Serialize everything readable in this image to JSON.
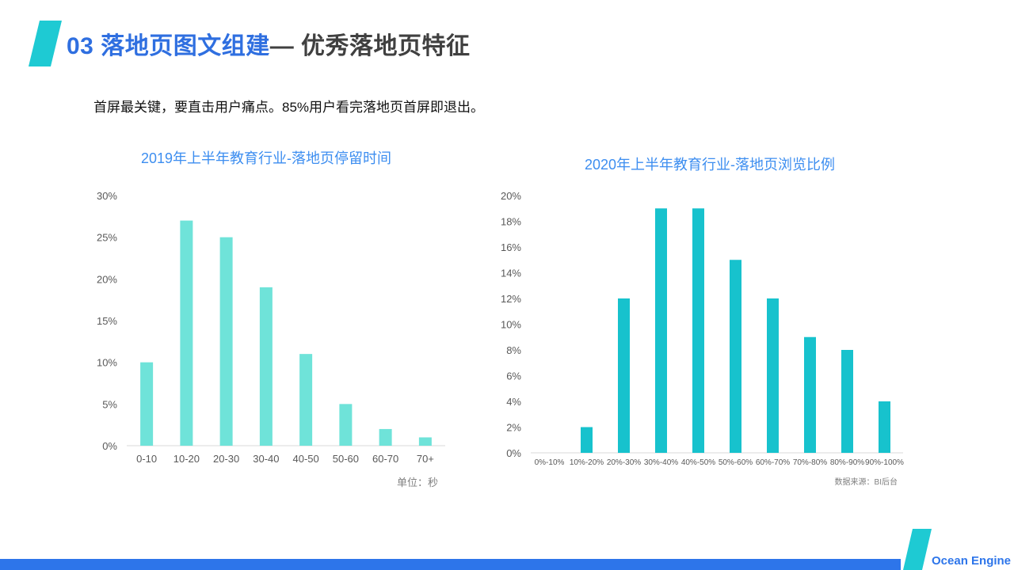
{
  "header": {
    "title_blue": "03 落地页图文组建",
    "title_gray": "— 优秀落地页特征"
  },
  "subtitle": "首屏最关键，要直击用户痛点。85%用户看完落地页首屏即退出。",
  "colors": {
    "accent": "#2f6fe0",
    "bar1": "#6fe3d9",
    "bar2": "#17c2cd",
    "footer": "#2d75ea",
    "logo": "#1ecad3"
  },
  "chart_data": [
    {
      "type": "bar",
      "title": "2019年上半年教育行业-落地页停留时间",
      "categories": [
        "0-10",
        "10-20",
        "20-30",
        "30-40",
        "40-50",
        "50-60",
        "60-70",
        "70+"
      ],
      "values": [
        10,
        27,
        25,
        19,
        11,
        5,
        2,
        1
      ],
      "ylim": [
        0,
        30
      ],
      "yticks": [
        "0%",
        "5%",
        "10%",
        "15%",
        "20%",
        "25%",
        "30%"
      ],
      "note": "单位：秒",
      "grid": false
    },
    {
      "type": "bar",
      "title": "2020年上半年教育行业-落地页浏览比例",
      "categories": [
        "0%-10%",
        "10%-20%",
        "20%-30%",
        "30%-40%",
        "40%-50%",
        "50%-60%",
        "60%-70%",
        "70%-80%",
        "80%-90%",
        "90%-100%"
      ],
      "values": [
        0,
        2,
        12,
        19,
        19,
        15,
        12,
        9,
        8,
        4
      ],
      "ylim": [
        0,
        20
      ],
      "yticks": [
        "0%",
        "2%",
        "4%",
        "6%",
        "8%",
        "10%",
        "12%",
        "14%",
        "16%",
        "18%",
        "20%"
      ],
      "note": "数据来源：BI后台",
      "grid": false
    }
  ],
  "brand": "Ocean Engine"
}
